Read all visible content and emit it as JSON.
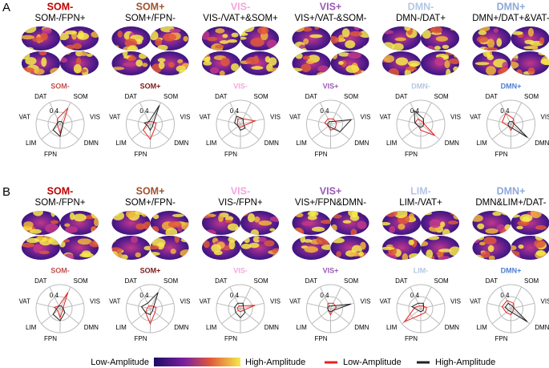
{
  "panels": [
    {
      "label": "A",
      "items": [
        {
          "state": "SOM-",
          "color": "#c00000",
          "pattern": "SOM-/FPN+",
          "chart_data": {
            "type": "radar",
            "title": "SOM-",
            "title_color": "#c0504d",
            "axes": [
              "SOM",
              "VIS",
              "DMN",
              "FPN",
              "LIM",
              "VAT",
              "DAT"
            ],
            "rlim": [
              0,
              0.8
            ],
            "rticks": [
              0.4
            ],
            "series": [
              {
                "color": "#e8211b",
                "values": [
                  0.6,
                  0.1,
                  0.1,
                  0.3,
                  0.1,
                  0.1,
                  0.2
                ]
              },
              {
                "color": "#222222",
                "values": [
                  0.1,
                  0.1,
                  0.1,
                  0.4,
                  0.3,
                  0.1,
                  0.1
                ]
              }
            ]
          }
        },
        {
          "state": "SOM+",
          "color": "#a0522d",
          "pattern": "SOM+/FPN-",
          "chart_data": {
            "type": "radar",
            "title": "SOM+",
            "title_color": "#7b1a1a",
            "axes": [
              "SOM",
              "VIS",
              "DMN",
              "FPN",
              "LIM",
              "VAT",
              "DAT"
            ],
            "rlim": [
              0,
              0.8
            ],
            "rticks": [
              0.4
            ],
            "series": [
              {
                "color": "#e8211b",
                "values": [
                  0.1,
                  0.2,
                  0.2,
                  0.5,
                  0.3,
                  0.1,
                  0.1
                ]
              },
              {
                "color": "#222222",
                "values": [
                  0.7,
                  0.1,
                  0.1,
                  0.2,
                  0.1,
                  0.2,
                  0.1
                ]
              }
            ]
          }
        },
        {
          "state": "VIS-",
          "color": "#f4a6dc",
          "pattern": "VIS-/VAT+&SOM+",
          "chart_data": {
            "type": "radar",
            "title": "VIS-",
            "title_color": "#f4a6dc",
            "axes": [
              "SOM",
              "VIS",
              "DMN",
              "FPN",
              "LIM",
              "VAT",
              "DAT"
            ],
            "rlim": [
              0,
              0.8
            ],
            "rticks": [
              0.4
            ],
            "series": [
              {
                "color": "#e8211b",
                "values": [
                  0.2,
                  0.5,
                  0.1,
                  0.1,
                  0.1,
                  0.1,
                  0.2
                ]
              },
              {
                "color": "#222222",
                "values": [
                  0.2,
                  0.1,
                  0.2,
                  0.2,
                  0.1,
                  0.2,
                  0.3
                ]
              }
            ]
          }
        },
        {
          "state": "VIS+",
          "color": "#9b59b6",
          "pattern": "VIS+/VAT-&SOM-",
          "chart_data": {
            "type": "radar",
            "title": "VIS+",
            "title_color": "#9b59b6",
            "axes": [
              "SOM",
              "VIS",
              "DMN",
              "FPN",
              "LIM",
              "VAT",
              "DAT"
            ],
            "rlim": [
              0,
              0.8
            ],
            "rticks": [
              0.4
            ],
            "series": [
              {
                "color": "#e8211b",
                "values": [
                  0.2,
                  0.2,
                  0.2,
                  0.2,
                  0.1,
                  0.2,
                  0.2
                ]
              },
              {
                "color": "#222222",
                "values": [
                  0.1,
                  0.7,
                  0.4,
                  0.1,
                  0.1,
                  0.1,
                  0.1
                ]
              }
            ]
          }
        },
        {
          "state": "DMN-",
          "color": "#b4c6e4",
          "pattern": "DMN-/DAT+",
          "chart_data": {
            "type": "radar",
            "title": "DMN-",
            "title_color": "#b4c6e4",
            "axes": [
              "SOM",
              "VIS",
              "DMN",
              "FPN",
              "LIM",
              "VAT",
              "DAT"
            ],
            "rlim": [
              0,
              0.8
            ],
            "rticks": [
              0.4
            ],
            "series": [
              {
                "color": "#e8211b",
                "values": [
                  0.1,
                  0.1,
                  0.6,
                  0.2,
                  0.1,
                  0.2,
                  0.2
                ]
              },
              {
                "color": "#222222",
                "values": [
                  0.2,
                  0.1,
                  0.1,
                  0.1,
                  0.1,
                  0.2,
                  0.5
                ]
              }
            ]
          }
        },
        {
          "state": "DMN+",
          "color": "#8ea9db",
          "pattern": "DMN+/DAT+&VAT-",
          "chart_data": {
            "type": "radar",
            "title": "DMN+",
            "title_color": "#4f7fd0",
            "axes": [
              "SOM",
              "VIS",
              "DMN",
              "FPN",
              "LIM",
              "VAT",
              "DAT"
            ],
            "rlim": [
              0,
              0.8
            ],
            "rticks": [
              0.4
            ],
            "series": [
              {
                "color": "#e8211b",
                "values": [
                  0.2,
                  0.1,
                  0.1,
                  0.2,
                  0.1,
                  0.3,
                  0.4
                ]
              },
              {
                "color": "#222222",
                "values": [
                  0.1,
                  0.1,
                  0.7,
                  0.1,
                  0.1,
                  0.1,
                  0.1
                ]
              }
            ]
          }
        }
      ]
    },
    {
      "label": "B",
      "items": [
        {
          "state": "SOM-",
          "color": "#c00000",
          "pattern": "SOM-/FPN+",
          "chart_data": {
            "type": "radar",
            "title": "SOM-",
            "title_color": "#c0504d",
            "axes": [
              "SOM",
              "VIS",
              "DMN",
              "FPN",
              "LIM",
              "VAT",
              "DAT"
            ],
            "rlim": [
              0,
              0.8
            ],
            "rticks": [
              0.4
            ],
            "series": [
              {
                "color": "#e8211b",
                "values": [
                  0.6,
                  0.1,
                  0.1,
                  0.3,
                  0.1,
                  0.2,
                  0.1
                ]
              },
              {
                "color": "#222222",
                "values": [
                  0.1,
                  0.1,
                  0.2,
                  0.4,
                  0.3,
                  0.1,
                  0.1
                ]
              }
            ]
          }
        },
        {
          "state": "SOM+",
          "color": "#a0522d",
          "pattern": "SOM+/FPN-",
          "chart_data": {
            "type": "radar",
            "title": "SOM+",
            "title_color": "#7b1a1a",
            "axes": [
              "SOM",
              "VIS",
              "DMN",
              "FPN",
              "LIM",
              "VAT",
              "DAT"
            ],
            "rlim": [
              0,
              0.8
            ],
            "rticks": [
              0.4
            ],
            "series": [
              {
                "color": "#e8211b",
                "values": [
                  0.1,
                  0.2,
                  0.2,
                  0.5,
                  0.2,
                  0.1,
                  0.1
                ]
              },
              {
                "color": "#222222",
                "values": [
                  0.6,
                  0.1,
                  0.1,
                  0.2,
                  0.2,
                  0.3,
                  0.2
                ]
              }
            ]
          }
        },
        {
          "state": "VIS-",
          "color": "#f4a6dc",
          "pattern": "VIS-/FPN+",
          "chart_data": {
            "type": "radar",
            "title": "VIS-",
            "title_color": "#f4a6dc",
            "axes": [
              "SOM",
              "VIS",
              "DMN",
              "FPN",
              "LIM",
              "VAT",
              "DAT"
            ],
            "rlim": [
              0,
              0.8
            ],
            "rticks": [
              0.4
            ],
            "series": [
              {
                "color": "#e8211b",
                "values": [
                  0.1,
                  0.5,
                  0.1,
                  0.1,
                  0.1,
                  0.1,
                  0.1
                ]
              },
              {
                "color": "#222222",
                "values": [
                  0.2,
                  0.1,
                  0.2,
                  0.3,
                  0.2,
                  0.2,
                  0.2
                ]
              }
            ]
          }
        },
        {
          "state": "VIS+",
          "color": "#9b59b6",
          "pattern": "VIS+/FPN&DMN-",
          "chart_data": {
            "type": "radar",
            "title": "VIS+",
            "title_color": "#9b59b6",
            "axes": [
              "SOM",
              "VIS",
              "DMN",
              "FPN",
              "LIM",
              "VAT",
              "DAT"
            ],
            "rlim": [
              0,
              0.8
            ],
            "rticks": [
              0.4
            ],
            "series": [
              {
                "color": "#e8211b",
                "values": [
                  0.2,
                  0.2,
                  0.1,
                  0.2,
                  0.1,
                  0.1,
                  0.2
                ]
              },
              {
                "color": "#222222",
                "values": [
                  0.1,
                  0.7,
                  0.1,
                  0.1,
                  0.1,
                  0.1,
                  0.1
                ]
              }
            ]
          }
        },
        {
          "state": "LIM-",
          "color": "#b4c6e4",
          "pattern": "LIM-/VAT+",
          "chart_data": {
            "type": "radar",
            "title": "LIM-",
            "title_color": "#b4c6e4",
            "axes": [
              "SOM",
              "VIS",
              "DMN",
              "FPN",
              "LIM",
              "VAT",
              "DAT"
            ],
            "rlim": [
              0,
              0.8
            ],
            "rticks": [
              0.4
            ],
            "series": [
              {
                "color": "#e8211b",
                "values": [
                  0.1,
                  0.2,
                  0.2,
                  0.2,
                  0.7,
                  0.2,
                  0.1
                ]
              },
              {
                "color": "#222222",
                "values": [
                  0.2,
                  0.1,
                  0.1,
                  0.1,
                  0.1,
                  0.3,
                  0.2
                ]
              }
            ]
          }
        },
        {
          "state": "DMN+",
          "color": "#8ea9db",
          "pattern": "DMN&LIM+/DAT-",
          "chart_data": {
            "type": "radar",
            "title": "DMN+",
            "title_color": "#4f7fd0",
            "axes": [
              "SOM",
              "VIS",
              "DMN",
              "FPN",
              "LIM",
              "VAT",
              "DAT"
            ],
            "rlim": [
              0,
              0.8
            ],
            "rticks": [
              0.4
            ],
            "series": [
              {
                "color": "#e8211b",
                "values": [
                  0.2,
                  0.1,
                  0.1,
                  0.2,
                  0.2,
                  0.3,
                  0.3
                ]
              },
              {
                "color": "#222222",
                "values": [
                  0.1,
                  0.1,
                  0.7,
                  0.1,
                  0.1,
                  0.2,
                  0.2
                ]
              }
            ]
          }
        }
      ]
    }
  ],
  "colorbar": {
    "low": "Low-Amplitude",
    "high": "High-Amplitude"
  },
  "legend": [
    {
      "name": "Low-Amplitude",
      "color": "#e8211b"
    },
    {
      "name": "High-Amplitude",
      "color": "#222222"
    }
  ]
}
